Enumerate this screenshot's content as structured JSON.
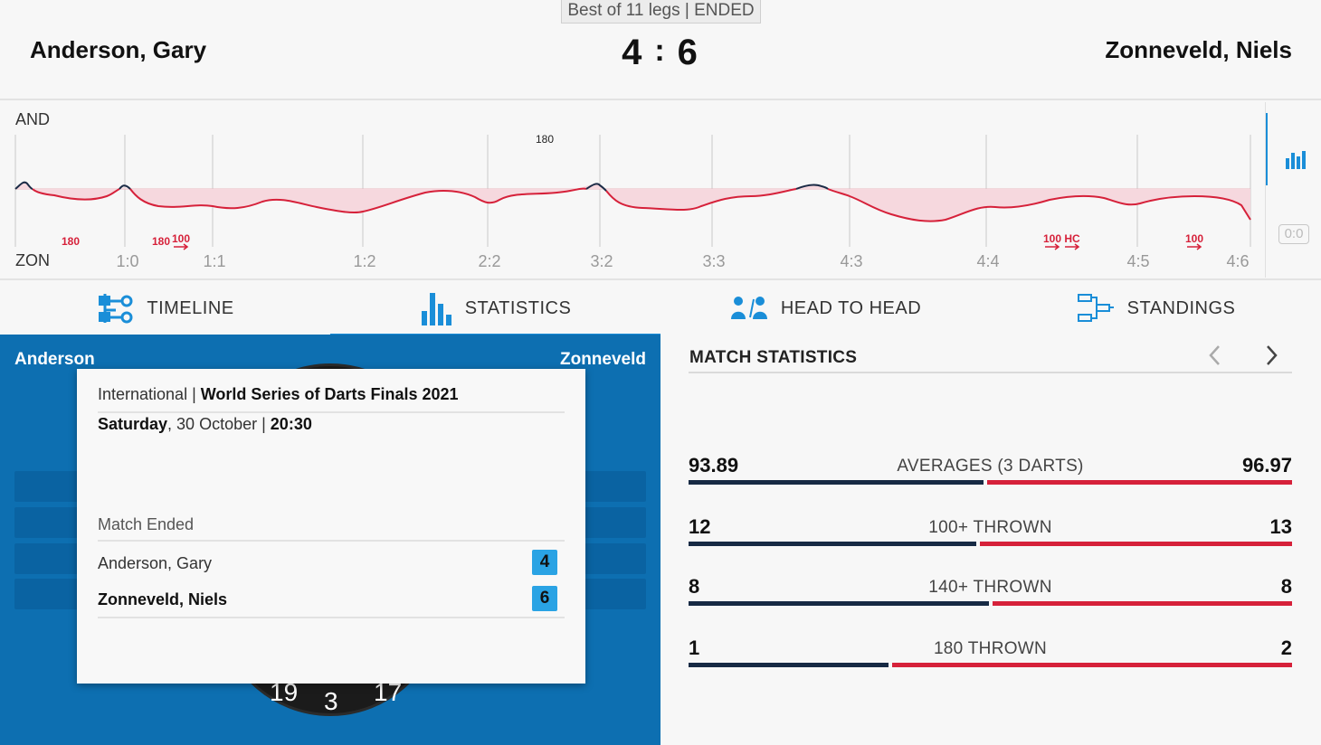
{
  "header": {
    "format": "Best of 11 legs | ENDED",
    "player_left": "Anderson, Gary",
    "player_right": "Zonneveld, Niels",
    "score_left": "4",
    "score_sep": ":",
    "score_right": "6"
  },
  "chart_data": {
    "type": "line",
    "top_label": "AND",
    "bottom_label": "ZON",
    "x_ticks": [
      "1:0",
      "1:1",
      "1:2",
      "2:2",
      "3:2",
      "3:3",
      "4:3",
      "4:4",
      "4:5",
      "4:6"
    ],
    "annotations_top": [
      "180"
    ],
    "annotations_bottom": [
      "180",
      "180",
      "100",
      "100",
      "HC",
      "100"
    ],
    "colors": {
      "player_a": "#1b2b46",
      "player_b": "#d6213a",
      "fill": "#f6d8de"
    }
  },
  "side": {
    "zero_label": "0:0"
  },
  "tabs": [
    {
      "label": "TIMELINE",
      "icon": "timeline-icon"
    },
    {
      "label": "STATISTICS",
      "icon": "bar-chart-icon"
    },
    {
      "label": "HEAD TO HEAD",
      "icon": "head-to-head-icon"
    },
    {
      "label": "STANDINGS",
      "icon": "bracket-icon"
    }
  ],
  "left_panel": {
    "name_left": "Anderson",
    "name_right": "Zonneveld",
    "dart_numbers": [
      "19",
      "3",
      "17"
    ],
    "card": {
      "category": "International",
      "tournament": "World Series of Darts Finals 2021",
      "day": "Saturday",
      "date": "30 October",
      "time": "20:30",
      "status": "Match Ended",
      "players": [
        {
          "name": "Anderson, Gary",
          "score": "4"
        },
        {
          "name": "Zonneveld, Niels",
          "score": "6"
        }
      ]
    }
  },
  "match_stats": {
    "title": "MATCH STATISTICS",
    "rows": [
      {
        "label": "AVERAGES (3 DARTS)",
        "left": "93.89",
        "right": "96.97"
      },
      {
        "label": "100+ THROWN",
        "left": "12",
        "right": "13"
      },
      {
        "label": "140+ THROWN",
        "left": "8",
        "right": "8"
      },
      {
        "label": "180 THROWN",
        "left": "1",
        "right": "2"
      }
    ]
  }
}
